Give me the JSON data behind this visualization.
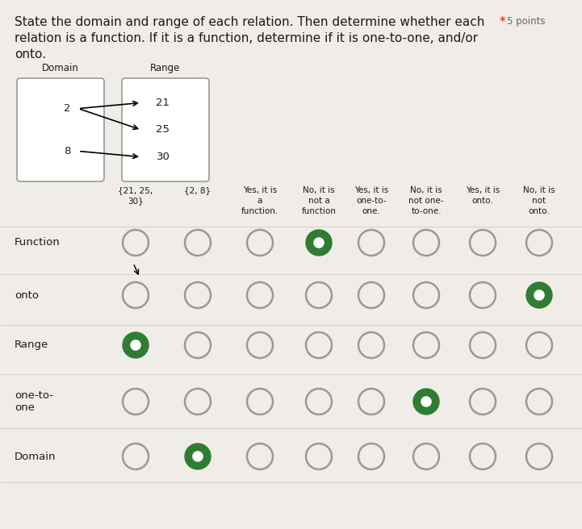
{
  "title_line1": "State the domain and range of each relation. Then determine whether each",
  "title_star_text": "* 5 points",
  "title_line2": "relation is a function. If it is a function, determine if it is one-to-one, and/or",
  "title_line3": "onto.",
  "domain_label": "Domain",
  "range_label": "Range",
  "domain_values": [
    "2",
    "8"
  ],
  "range_values": [
    "21",
    "25",
    "30"
  ],
  "arrows": [
    [
      0,
      0
    ],
    [
      0,
      1
    ],
    [
      1,
      2
    ]
  ],
  "col_headers": [
    "{21, 25,\n30}",
    "{2, 8}",
    "Yes, it is\na\nfunction.",
    "No, it is\nnot a\nfunction",
    "Yes, it is\none-to-\none.",
    "No, it is\nnot one-\nto-one.",
    "Yes, it is\nonto.",
    "No, it is\nnot\nonto."
  ],
  "row_labels": [
    "Function",
    "onto",
    "Range",
    "one-to-\none",
    "Domain"
  ],
  "filled_circles": [
    [
      0,
      3
    ],
    [
      1,
      7
    ],
    [
      2,
      0
    ],
    [
      3,
      5
    ],
    [
      4,
      1
    ]
  ],
  "bg_color": "#f0ede8",
  "circle_color": "#2e7d32",
  "text_color": "#1a1a1a",
  "font_size_title": 11,
  "font_size_cell": 7.5,
  "font_size_row": 9.5
}
